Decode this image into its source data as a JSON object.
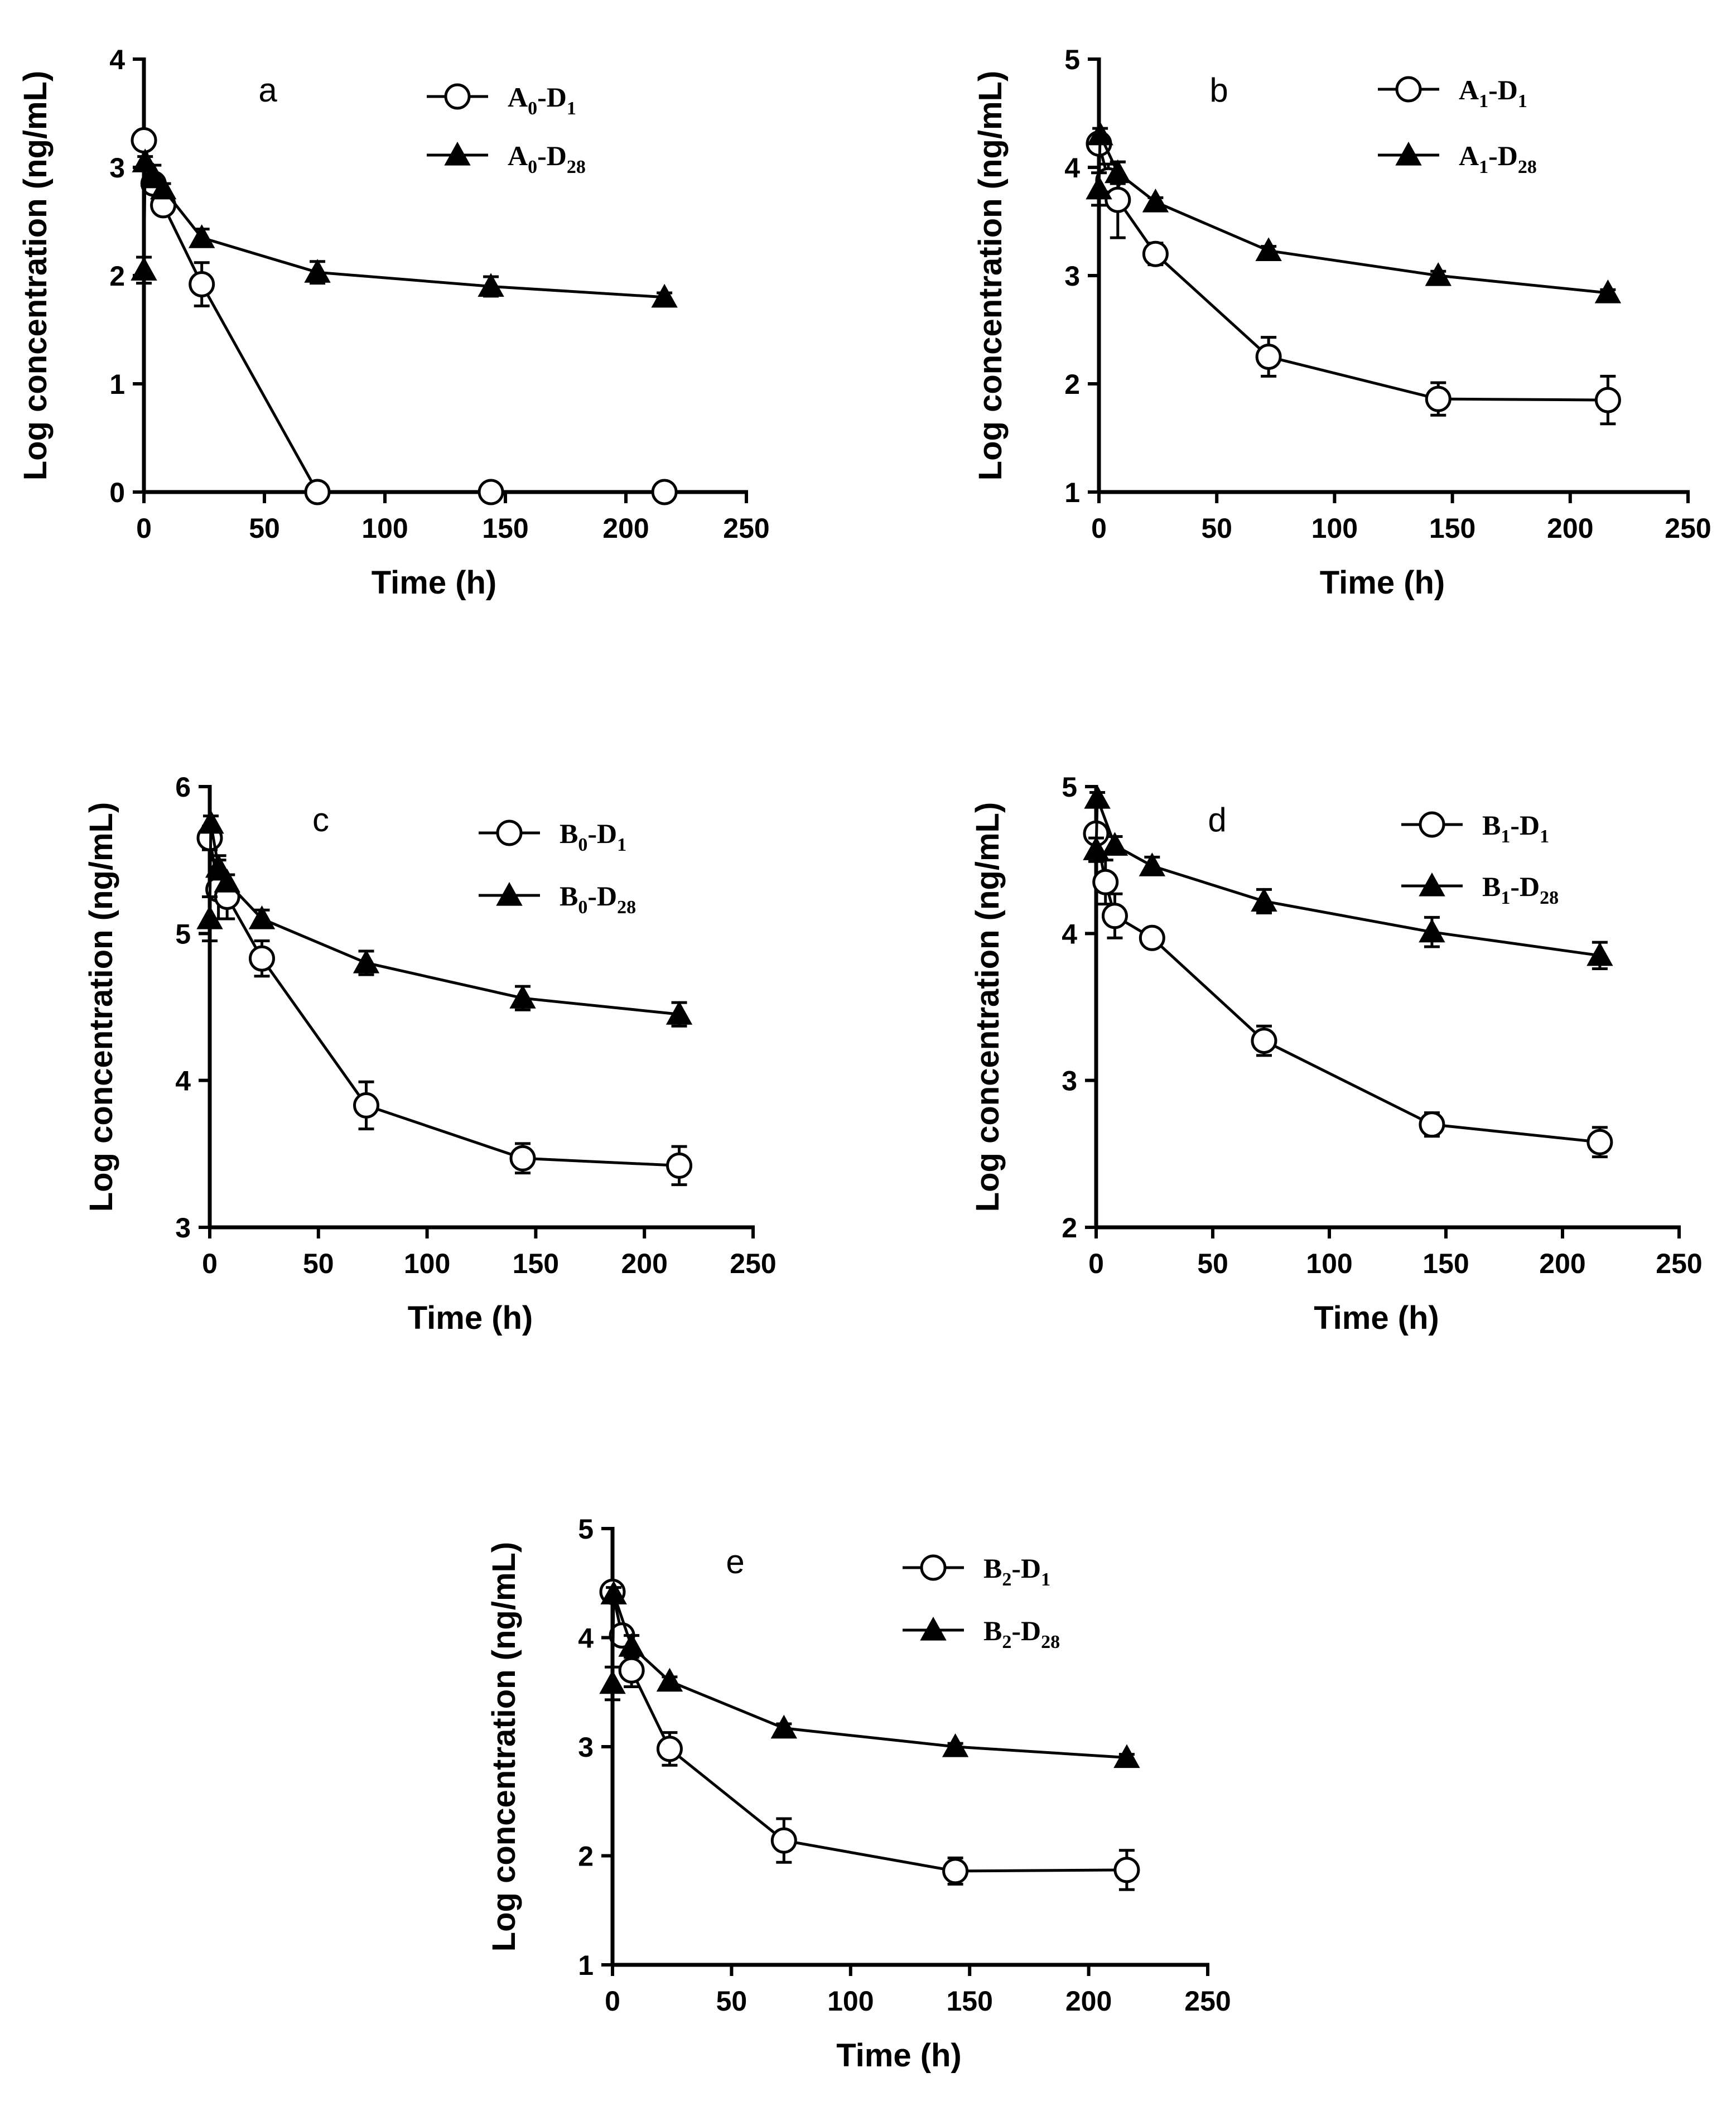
{
  "chart_data": [
    {
      "type": "line",
      "panel": "a",
      "xlabel": "Time (h)",
      "ylabel": "Log concentration (ng/mL)",
      "xlim": [
        0,
        250
      ],
      "ylim": [
        0,
        4
      ],
      "xticks": [
        0,
        50,
        100,
        150,
        200,
        250
      ],
      "yticks": [
        0,
        1,
        2,
        3,
        4
      ],
      "legend": "top-right",
      "series": [
        {
          "name": "A0-D1",
          "label_main": "A",
          "label_sub1": "0",
          "label_mid": "-D",
          "label_sub2": "1",
          "marker": "circle",
          "x": [
            0,
            4,
            8,
            24,
            72,
            144,
            216
          ],
          "y": [
            3.25,
            2.85,
            2.65,
            1.92,
            0.0,
            0.0,
            0.0
          ],
          "err": [
            0,
            0.05,
            0.08,
            0.2,
            0,
            0,
            0
          ]
        },
        {
          "name": "A0-D28",
          "label_main": "A",
          "label_sub1": "0",
          "label_mid": "-D",
          "label_sub2": "28",
          "marker": "triangle",
          "x": [
            0,
            0.5,
            4,
            8,
            24,
            72,
            144,
            216
          ],
          "y": [
            2.05,
            3.05,
            2.92,
            2.8,
            2.35,
            2.03,
            1.9,
            1.8
          ],
          "err": [
            0.12,
            0.05,
            0.1,
            0.05,
            0.08,
            0.1,
            0.09,
            0.04
          ]
        }
      ]
    },
    {
      "type": "line",
      "panel": "b",
      "xlabel": "Time (h)",
      "ylabel": "Log concentration (ng/mL)",
      "xlim": [
        0,
        250
      ],
      "ylim": [
        1,
        5
      ],
      "xticks": [
        0,
        50,
        100,
        150,
        200,
        250
      ],
      "yticks": [
        1,
        2,
        3,
        4,
        5
      ],
      "legend": "top-right",
      "series": [
        {
          "name": "A1-D1",
          "label_main": "A",
          "label_sub1": "1",
          "label_mid": "-D",
          "label_sub2": "1",
          "marker": "circle",
          "x": [
            0,
            4,
            8,
            24,
            72,
            144,
            216
          ],
          "y": [
            4.22,
            3.88,
            3.7,
            3.2,
            2.25,
            1.86,
            1.85
          ],
          "err": [
            0.08,
            0.15,
            0.35,
            0.1,
            0.18,
            0.15,
            0.22
          ]
        },
        {
          "name": "A1-D28",
          "label_main": "A",
          "label_sub1": "1",
          "label_mid": "-D",
          "label_sub2": "28",
          "marker": "triangle",
          "x": [
            0,
            0.5,
            8,
            24,
            72,
            144,
            216
          ],
          "y": [
            3.8,
            4.3,
            3.95,
            3.68,
            3.23,
            3.0,
            2.84
          ],
          "err": [
            0.15,
            0.06,
            0.1,
            0.04,
            0.04,
            0.04,
            0.03
          ]
        }
      ]
    },
    {
      "type": "line",
      "panel": "c",
      "xlabel": "Time (h)",
      "ylabel": "Log concentration (ng/mL)",
      "xlim": [
        0,
        250
      ],
      "ylim": [
        3,
        6
      ],
      "xticks": [
        0,
        50,
        100,
        150,
        200,
        250
      ],
      "yticks": [
        3,
        4,
        5,
        6
      ],
      "legend": "top-right",
      "series": [
        {
          "name": "B0-D1",
          "label_main": "B",
          "label_sub1": "0",
          "label_mid": "-D",
          "label_sub2": "1",
          "marker": "circle",
          "x": [
            0,
            4,
            8,
            24,
            72,
            144,
            216
          ],
          "y": [
            5.65,
            5.3,
            5.25,
            4.83,
            3.83,
            3.47,
            3.42
          ],
          "err": [
            0.08,
            0.2,
            0.15,
            0.12,
            0.16,
            0.1,
            0.13
          ]
        },
        {
          "name": "B0-D28",
          "label_main": "B",
          "label_sub1": "0",
          "label_mid": "-D",
          "label_sub2": "28",
          "marker": "triangle",
          "x": [
            0,
            0.5,
            4,
            8,
            24,
            72,
            144,
            216
          ],
          "y": [
            5.1,
            5.75,
            5.45,
            5.35,
            5.1,
            4.8,
            4.56,
            4.45
          ],
          "err": [
            0.15,
            0.05,
            0.08,
            0.05,
            0.06,
            0.08,
            0.08,
            0.08
          ]
        }
      ]
    },
    {
      "type": "line",
      "panel": "d",
      "xlabel": "Time (h)",
      "ylabel": "Log concentration (ng/mL)",
      "xlim": [
        0,
        250
      ],
      "ylim": [
        2,
        5
      ],
      "xticks": [
        0,
        50,
        100,
        150,
        200,
        250
      ],
      "yticks": [
        2,
        3,
        4,
        5
      ],
      "legend": "top-right",
      "series": [
        {
          "name": "B1-D1",
          "label_main": "B",
          "label_sub1": "1",
          "label_mid": "-D",
          "label_sub2": "1",
          "marker": "circle",
          "x": [
            0,
            4,
            8,
            24,
            72,
            144,
            216
          ],
          "y": [
            4.68,
            4.35,
            4.12,
            3.97,
            3.27,
            2.7,
            2.58
          ],
          "err": [
            0.05,
            0.15,
            0.15,
            0.06,
            0.1,
            0.08,
            0.1
          ]
        },
        {
          "name": "B1-D28",
          "label_main": "B",
          "label_sub1": "1",
          "label_mid": "-D",
          "label_sub2": "28",
          "marker": "triangle",
          "x": [
            0,
            0.5,
            8,
            24,
            72,
            144,
            216
          ],
          "y": [
            4.57,
            4.92,
            4.6,
            4.46,
            4.22,
            4.01,
            3.85
          ],
          "err": [
            0.08,
            0.04,
            0.06,
            0.06,
            0.08,
            0.1,
            0.09
          ]
        }
      ]
    },
    {
      "type": "line",
      "panel": "e",
      "xlabel": "Time (h)",
      "ylabel": "Log concentration (ng/mL)",
      "xlim": [
        0,
        250
      ],
      "ylim": [
        1,
        5
      ],
      "xticks": [
        0,
        50,
        100,
        150,
        200,
        250
      ],
      "yticks": [
        1,
        2,
        3,
        4,
        5
      ],
      "legend": "top-right",
      "series": [
        {
          "name": "B2-D1",
          "label_main": "B",
          "label_sub1": "2",
          "label_mid": "-D",
          "label_sub2": "1",
          "marker": "circle",
          "x": [
            0,
            4,
            8,
            24,
            72,
            144,
            216
          ],
          "y": [
            4.42,
            4.02,
            3.7,
            2.98,
            2.14,
            1.86,
            1.87
          ],
          "err": [
            0.04,
            0.08,
            0.15,
            0.15,
            0.2,
            0.12,
            0.18
          ]
        },
        {
          "name": "B2-D28",
          "label_main": "B",
          "label_sub1": "2",
          "label_mid": "-D",
          "label_sub2": "28",
          "marker": "triangle",
          "x": [
            0,
            0.5,
            8,
            24,
            72,
            144,
            216
          ],
          "y": [
            3.58,
            4.4,
            3.92,
            3.6,
            3.17,
            3.0,
            2.9
          ],
          "err": [
            0.15,
            0.06,
            0.1,
            0.04,
            0.04,
            0.03,
            0.03
          ]
        }
      ]
    }
  ]
}
